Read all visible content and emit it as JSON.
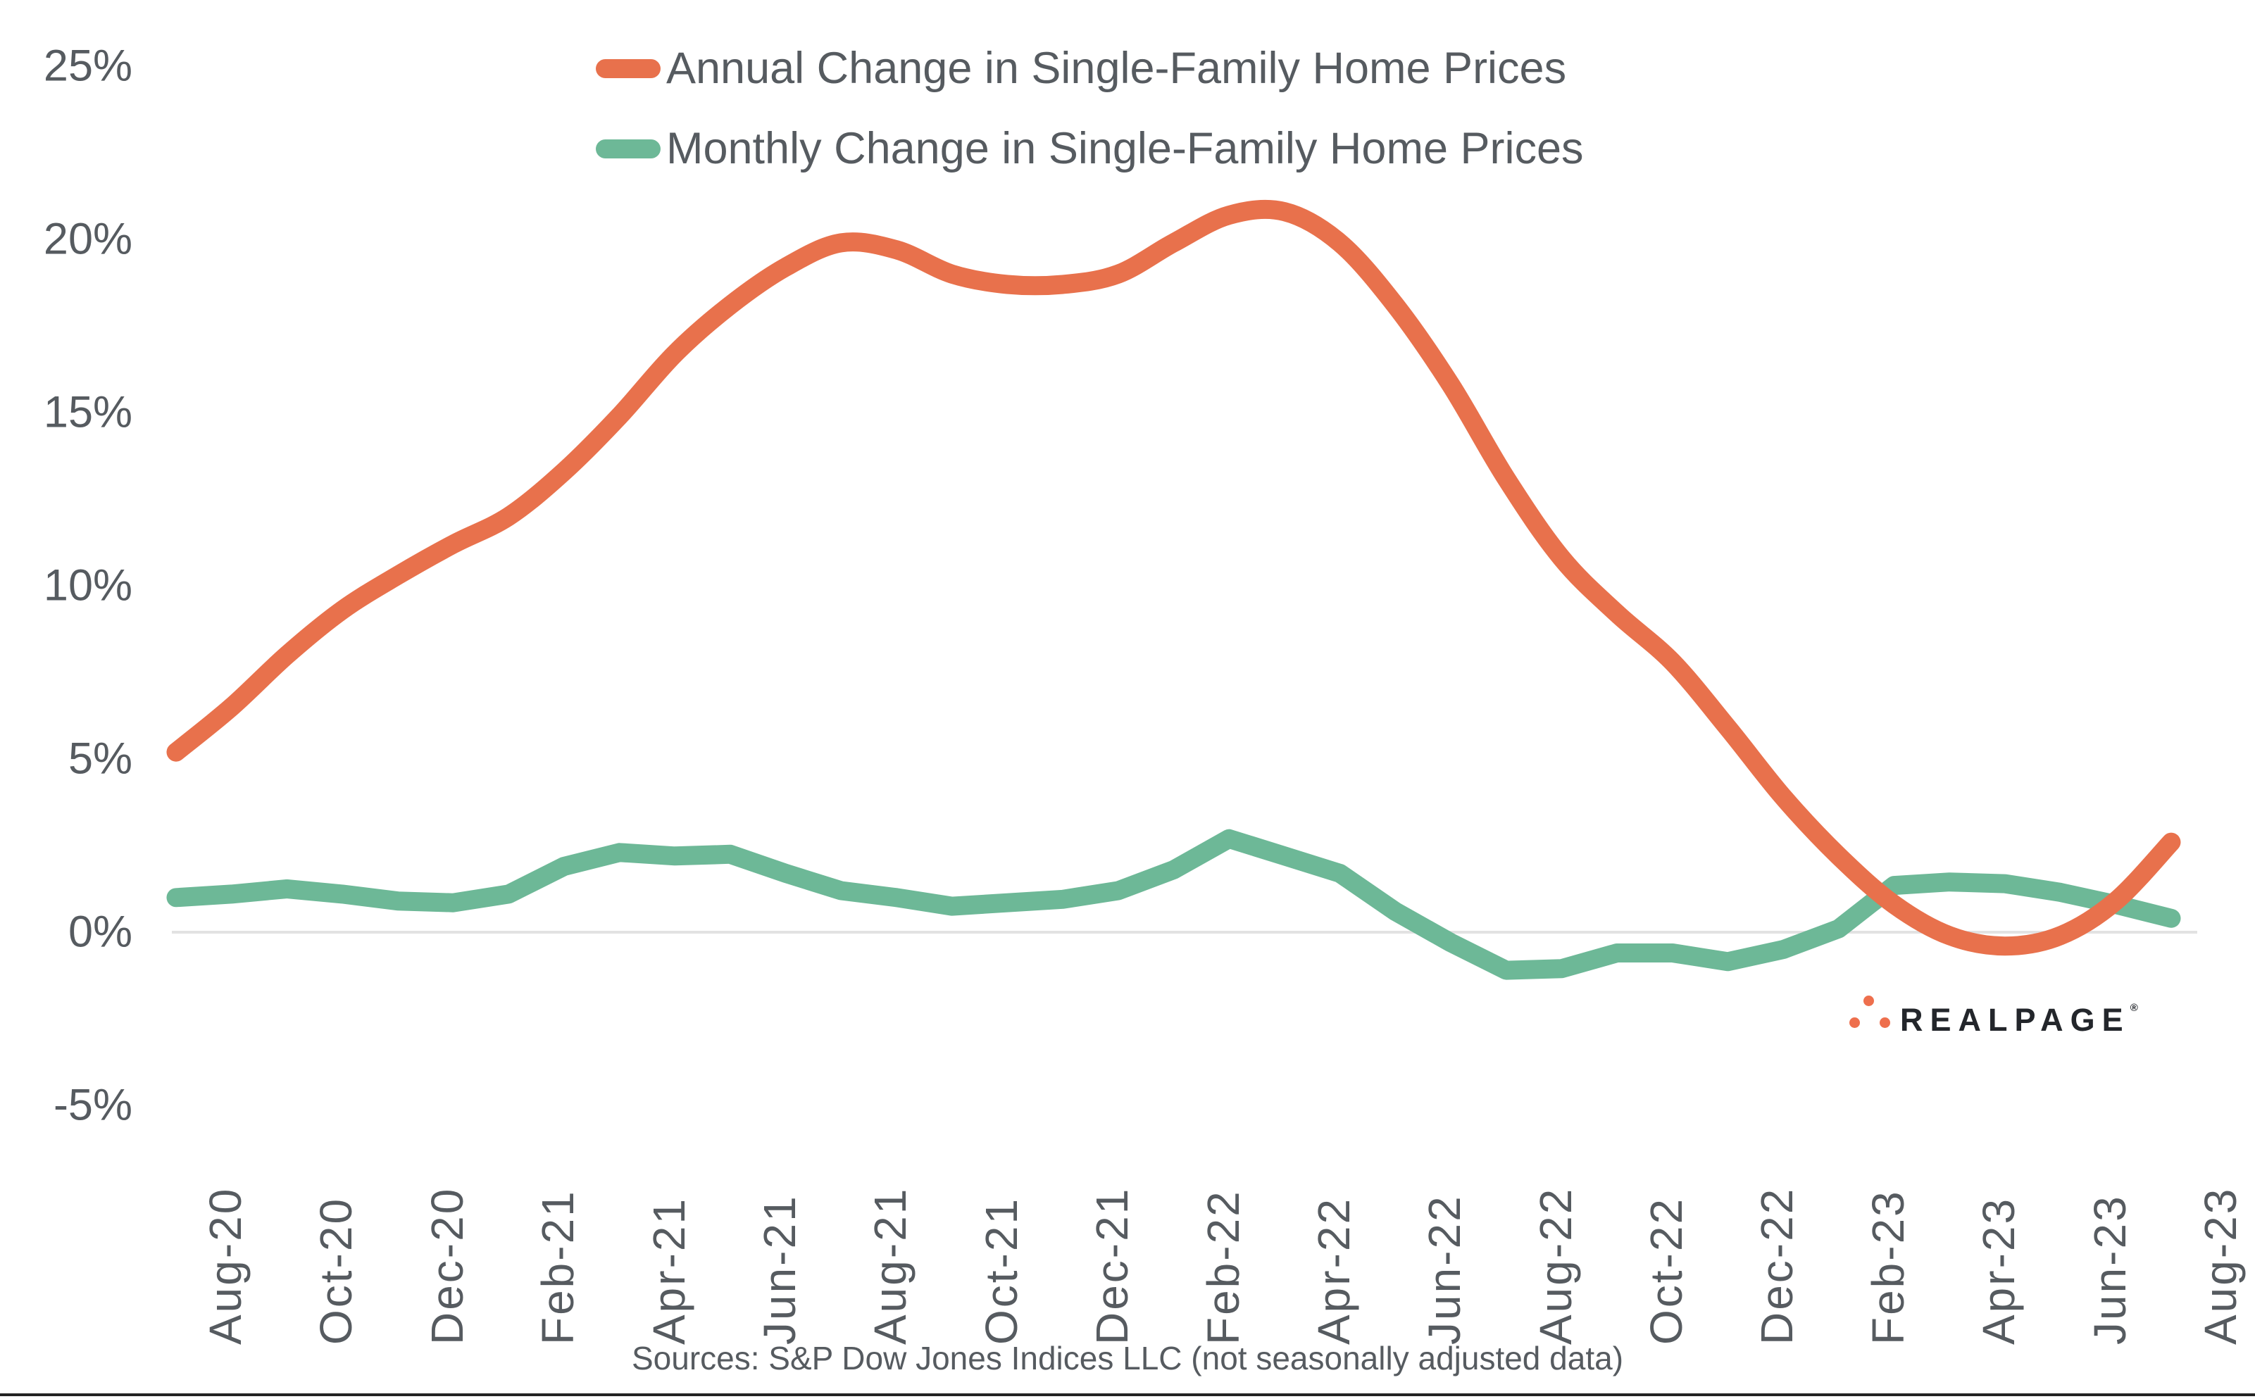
{
  "legend": {
    "annual_label": "Annual Change in Single-Family Home Prices",
    "monthly_label": "Monthly Change in Single-Family Home Prices"
  },
  "colors": {
    "annual": "#E8714C",
    "monthly": "#6DB897",
    "axis_text": "#565B60",
    "gridline": "#E2E2E2",
    "logo_text": "#23262B",
    "logo_dot": "#EE6F4D",
    "bottom_rule": "#222222"
  },
  "axis": {
    "y_ticks": [
      "25%",
      "20%",
      "15%",
      "10%",
      "5%",
      "0%",
      "-5%"
    ],
    "y_tick_values": [
      25,
      20,
      15,
      10,
      5,
      0,
      -5
    ],
    "x_tick_labels": [
      "Aug-20",
      "Oct-20",
      "Dec-20",
      "Feb-21",
      "Apr-21",
      "Jun-21",
      "Aug-21",
      "Oct-21",
      "Dec-21",
      "Feb-22",
      "Apr-22",
      "Jun-22",
      "Aug-22",
      "Oct-22",
      "Dec-22",
      "Feb-23",
      "Apr-23",
      "Jun-23",
      "Aug-23"
    ]
  },
  "chart_data": {
    "type": "line",
    "title": "",
    "xlabel": "",
    "ylabel": "",
    "ylim": [
      -5,
      25
    ],
    "grid": "zero-baseline-only",
    "legend_position": "top-center",
    "x": [
      "Aug-20",
      "Sep-20",
      "Oct-20",
      "Nov-20",
      "Dec-20",
      "Jan-21",
      "Feb-21",
      "Mar-21",
      "Apr-21",
      "May-21",
      "Jun-21",
      "Jul-21",
      "Aug-21",
      "Sep-21",
      "Oct-21",
      "Nov-21",
      "Dec-21",
      "Jan-22",
      "Feb-22",
      "Mar-22",
      "Apr-22",
      "May-22",
      "Jun-22",
      "Jul-22",
      "Aug-22",
      "Sep-22",
      "Oct-22",
      "Nov-22",
      "Dec-22",
      "Jan-23",
      "Feb-23",
      "Mar-23",
      "Apr-23",
      "May-23",
      "Jun-23",
      "Jul-23",
      "Aug-23"
    ],
    "x_tick_step": 2,
    "series": [
      {
        "name": "Monthly Change in Single-Family Home Prices",
        "color_key": "monthly",
        "smooth": false,
        "values": [
          1.0,
          1.1,
          1.25,
          1.1,
          0.9,
          0.85,
          1.1,
          1.9,
          2.3,
          2.2,
          2.25,
          1.7,
          1.2,
          1.0,
          0.75,
          0.85,
          0.95,
          1.2,
          1.8,
          2.7,
          2.2,
          1.7,
          0.6,
          -0.3,
          -1.1,
          -1.05,
          -0.6,
          -0.6,
          -0.85,
          -0.5,
          0.1,
          1.35,
          1.45,
          1.4,
          1.15,
          0.8,
          0.4
        ]
      },
      {
        "name": "Annual Change in Single-Family Home Prices",
        "color_key": "annual",
        "smooth": true,
        "values": [
          5.2,
          6.5,
          8.0,
          9.3,
          10.3,
          11.2,
          12.0,
          13.3,
          14.9,
          16.7,
          18.1,
          19.2,
          19.9,
          19.7,
          19.0,
          18.7,
          18.7,
          19.0,
          19.9,
          20.7,
          20.8,
          19.9,
          18.1,
          15.8,
          13.1,
          10.8,
          9.2,
          7.8,
          5.9,
          3.9,
          2.2,
          0.8,
          -0.1,
          -0.4,
          -0.1,
          0.9,
          2.6
        ]
      }
    ]
  },
  "branding": {
    "logo_text": "REALPAGE",
    "logo_reg": "®"
  },
  "footer": {
    "sources": "Sources: S&P Dow Jones Indices LLC (not seasonally adjusted data)"
  }
}
